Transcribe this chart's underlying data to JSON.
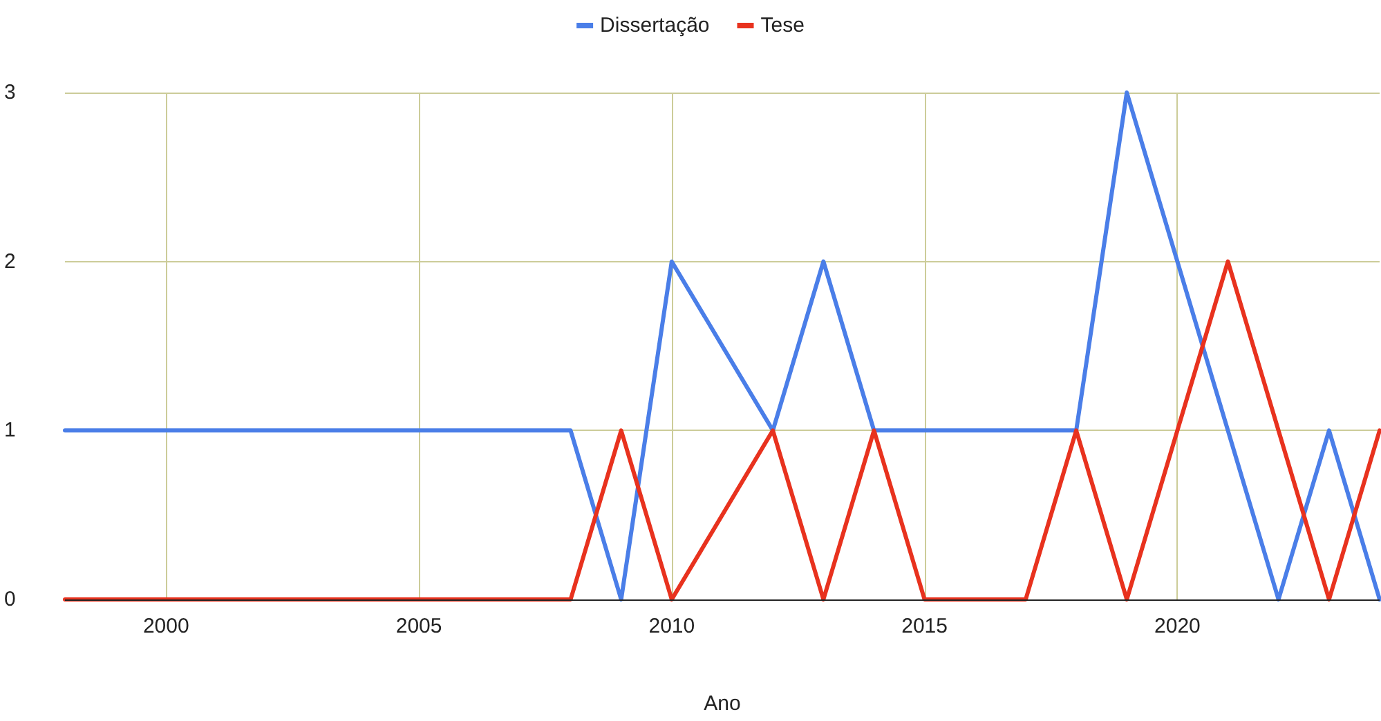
{
  "chart_data": {
    "type": "line",
    "xlabel": "Ano",
    "xlim": [
      1998,
      2024
    ],
    "xticks": [
      2000,
      2005,
      2010,
      2015,
      2020
    ],
    "ylim": [
      0,
      3
    ],
    "yticks": [
      0,
      1,
      2,
      3
    ],
    "grid": true,
    "legend": "top",
    "line_style": "solid",
    "marker": "none",
    "series": [
      {
        "name": "Dissertação",
        "color": "#4a7ee8",
        "x": [
          1998,
          2008,
          2009,
          2010,
          2012,
          2013,
          2014,
          2018,
          2019,
          2020,
          2021,
          2022,
          2023,
          2024
        ],
        "values": [
          1,
          1,
          0,
          2,
          1,
          2,
          1,
          1,
          3,
          2,
          1,
          0,
          1,
          0
        ]
      },
      {
        "name": "Tese",
        "color": "#e8321e",
        "x": [
          1998,
          2008,
          2009,
          2010,
          2012,
          2013,
          2014,
          2015,
          2017,
          2018,
          2019,
          2020,
          2021,
          2022,
          2023,
          2024
        ],
        "values": [
          0,
          0,
          1,
          0,
          1,
          0,
          1,
          0,
          0,
          1,
          0,
          1,
          2,
          1,
          0,
          1
        ]
      }
    ]
  }
}
